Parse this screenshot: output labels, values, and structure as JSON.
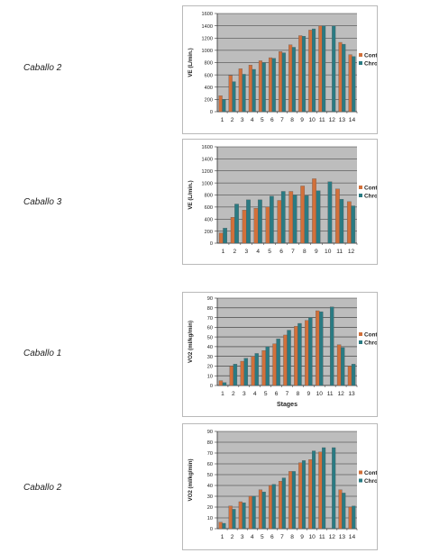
{
  "series_colors": {
    "Control": "#d2703a",
    "Chromactiv": "#2a7b83"
  },
  "plot_bg": "#bdbdbd",
  "chart_data": [
    {
      "type": "bar",
      "row_label": "Caballo 2",
      "ylabel": "VE (L/min.)",
      "xlabel": "",
      "ylim": [
        0,
        1600
      ],
      "yticks": [
        0,
        200,
        400,
        600,
        800,
        1000,
        1200,
        1400,
        1600
      ],
      "grid": true,
      "legend": "right",
      "categories": [
        "1",
        "2",
        "3",
        "4",
        "5",
        "6",
        "7",
        "8",
        "9",
        "10",
        "11",
        "12",
        "13",
        "14"
      ],
      "series": [
        {
          "name": "Control",
          "values": [
            260,
            590,
            700,
            760,
            830,
            880,
            980,
            1090,
            1240,
            1330,
            1400,
            null,
            1130,
            930
          ]
        },
        {
          "name": "Chromactiv",
          "values": [
            200,
            490,
            610,
            690,
            800,
            870,
            960,
            1050,
            1230,
            1350,
            1400,
            1400,
            1100,
            900
          ]
        }
      ]
    },
    {
      "type": "bar",
      "row_label": "Caballo 3",
      "ylabel": "VE (L/min.)",
      "xlabel": "",
      "ylim": [
        0,
        1600
      ],
      "yticks": [
        0,
        200,
        400,
        600,
        800,
        1000,
        1200,
        1400,
        1600
      ],
      "grid": true,
      "legend": "right",
      "categories": [
        "1",
        "2",
        "3",
        "4",
        "5",
        "6",
        "7",
        "8",
        "9",
        "10",
        "11",
        "12"
      ],
      "series": [
        {
          "name": "Control",
          "values": [
            170,
            430,
            550,
            580,
            600,
            710,
            860,
            950,
            1070,
            null,
            900,
            690
          ]
        },
        {
          "name": "Chromactiv",
          "values": [
            250,
            650,
            720,
            720,
            780,
            860,
            800,
            790,
            870,
            1020,
            730,
            620
          ]
        }
      ]
    },
    {
      "type": "bar",
      "row_label": "Caballo 1",
      "ylabel": "VO2 (ml/kg/min)",
      "xlabel": "Stages",
      "ylim": [
        0,
        90
      ],
      "yticks": [
        0,
        10,
        20,
        30,
        40,
        50,
        60,
        70,
        80,
        90
      ],
      "grid": true,
      "legend": "right",
      "categories": [
        "1",
        "2",
        "3",
        "4",
        "5",
        "6",
        "7",
        "8",
        "9",
        "10",
        "11",
        "12",
        "13"
      ],
      "series": [
        {
          "name": "Control",
          "values": [
            5,
            20,
            25,
            30,
            36,
            43,
            52,
            61,
            67,
            77,
            null,
            42,
            20
          ]
        },
        {
          "name": "Chromactiv",
          "values": [
            3,
            22,
            28,
            33,
            40,
            48,
            57,
            64,
            70,
            76,
            81,
            39,
            22
          ]
        }
      ]
    },
    {
      "type": "bar",
      "row_label": "Caballo 2",
      "ylabel": "VO2 (ml/kg/min)",
      "xlabel": "",
      "ylim": [
        0,
        90
      ],
      "yticks": [
        0,
        10,
        20,
        30,
        40,
        50,
        60,
        70,
        80,
        90
      ],
      "grid": true,
      "legend": "right",
      "categories": [
        "1",
        "2",
        "3",
        "4",
        "5",
        "6",
        "7",
        "8",
        "9",
        "10",
        "11",
        "12",
        "13",
        "14"
      ],
      "series": [
        {
          "name": "Control",
          "values": [
            6,
            21,
            25,
            30,
            36,
            40,
            44,
            53,
            61,
            64,
            71,
            null,
            36,
            20
          ]
        },
        {
          "name": "Chromactiv",
          "values": [
            5,
            18,
            24,
            30,
            34,
            41,
            47,
            53,
            63,
            72,
            75,
            75,
            33,
            21
          ]
        }
      ]
    }
  ]
}
